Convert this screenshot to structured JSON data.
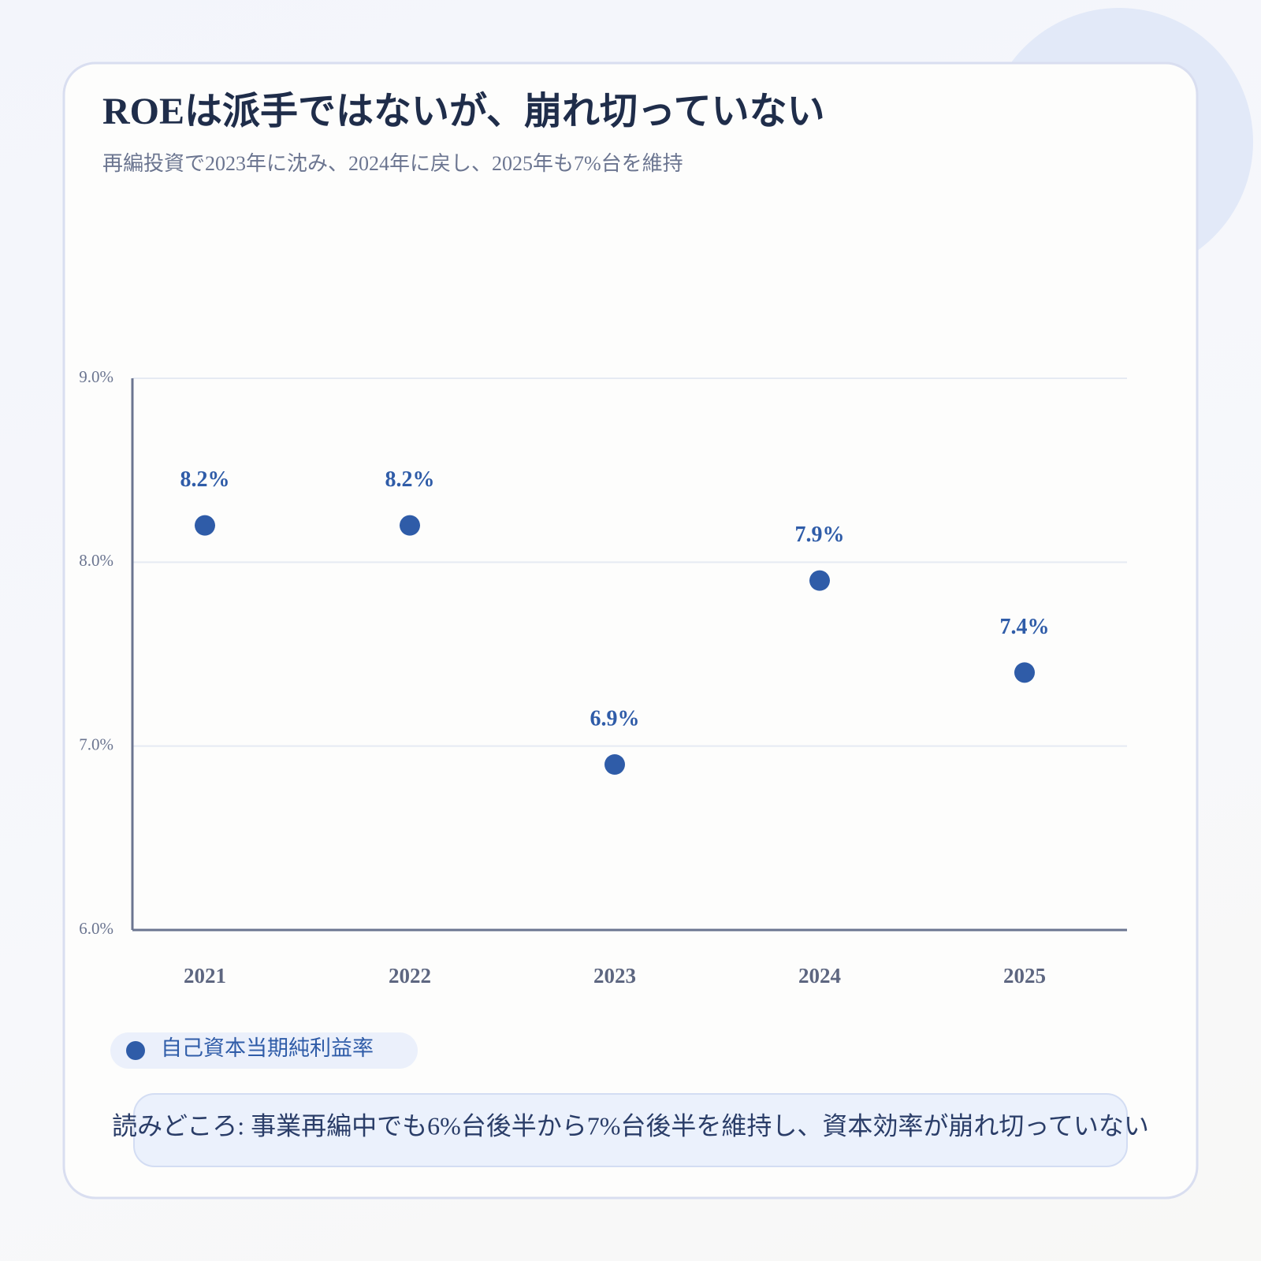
{
  "chart_data": {
    "type": "line",
    "title": "ROEは派手ではないが、崩れ切っていない",
    "subtitle": "再編投資で2023年に沈み、2024年に戻し、2025年も7%台を維持",
    "categories": [
      "2021",
      "2022",
      "2023",
      "2024",
      "2025"
    ],
    "series": [
      {
        "name": "自己資本当期純利益率",
        "color": "#2f5ca8",
        "values": [
          8.2,
          8.2,
          6.9,
          7.9,
          7.4
        ],
        "value_labels": [
          "8.2%",
          "8.2%",
          "6.9%",
          "7.9%",
          "7.4%"
        ]
      }
    ],
    "ylim": [
      6,
      9
    ],
    "yticks": [
      {
        "value": 6,
        "label": "6.0%"
      },
      {
        "value": 7,
        "label": "7.0%"
      },
      {
        "value": 8,
        "label": "8.0%"
      },
      {
        "value": 9,
        "label": "9.0%"
      }
    ],
    "grid": true,
    "annotation": "読みどころ: 事業再編中でも6%台後半から7%台後半を維持し、資本効率が崩れ切っていない"
  }
}
